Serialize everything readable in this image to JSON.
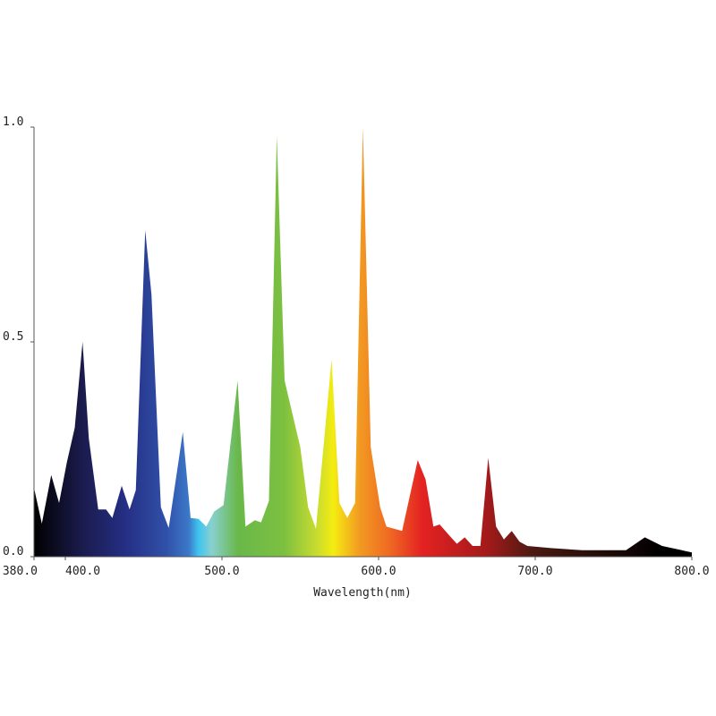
{
  "chart_data": {
    "type": "area",
    "x_label": "Wavelength(nm)",
    "x": [
      380,
      385,
      391,
      396,
      401,
      406,
      411,
      415,
      421,
      426,
      430,
      436,
      441,
      445,
      451,
      455,
      461,
      466,
      475,
      480,
      485,
      490,
      495,
      501,
      510,
      515,
      521,
      525,
      530,
      535,
      540,
      550,
      555,
      560,
      570,
      575,
      580,
      585,
      590,
      595,
      601,
      605,
      615,
      625,
      630,
      635,
      639,
      645,
      650,
      655,
      660,
      665,
      670,
      675,
      680,
      685,
      690,
      695,
      710,
      730,
      758,
      770,
      781,
      800
    ],
    "values": [
      0.16,
      0.077,
      0.19,
      0.125,
      0.22,
      0.3,
      0.5,
      0.275,
      0.11,
      0.11,
      0.09,
      0.165,
      0.11,
      0.155,
      0.76,
      0.61,
      0.115,
      0.067,
      0.29,
      0.09,
      0.088,
      0.07,
      0.105,
      0.12,
      0.41,
      0.07,
      0.085,
      0.08,
      0.13,
      0.98,
      0.41,
      0.255,
      0.115,
      0.065,
      0.46,
      0.125,
      0.09,
      0.125,
      1.0,
      0.255,
      0.115,
      0.07,
      0.06,
      0.225,
      0.18,
      0.07,
      0.075,
      0.05,
      0.03,
      0.045,
      0.025,
      0.025,
      0.23,
      0.07,
      0.04,
      0.06,
      0.035,
      0.025,
      0.02,
      0.015,
      0.015,
      0.045,
      0.025,
      0.01
    ],
    "xlim": [
      380,
      800
    ],
    "xticks": [
      {
        "value": 380,
        "label": "380.0"
      },
      {
        "value": 400,
        "label": "400.0"
      },
      {
        "value": 500,
        "label": "500.0"
      },
      {
        "value": 600,
        "label": "600.0"
      },
      {
        "value": 700,
        "label": "700.0"
      },
      {
        "value": 800,
        "label": "800.0"
      }
    ],
    "ylim": [
      0,
      1
    ],
    "yticks": [
      {
        "value": 0,
        "label": "0.0"
      },
      {
        "value": 0.5,
        "label": "0.5"
      },
      {
        "value": 1,
        "label": "1.0"
      }
    ]
  }
}
